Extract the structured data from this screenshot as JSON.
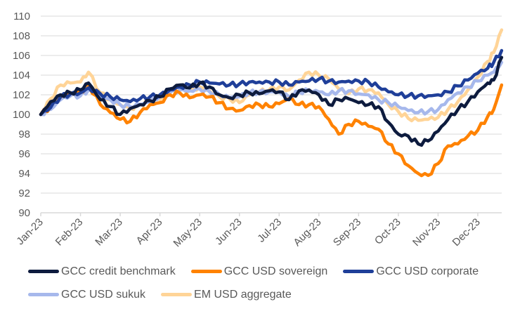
{
  "chart_data": {
    "type": "line",
    "title": "",
    "xlabel": "",
    "ylabel": "",
    "ylim": [
      90,
      110
    ],
    "yticks": [
      "90",
      "92",
      "94",
      "96",
      "98",
      "100",
      "102",
      "104",
      "106",
      "108",
      "110"
    ],
    "grid": true,
    "legend_position": "bottom",
    "x_tick_labels": [
      "Jan-23",
      "Feb-23",
      "Mar-23",
      "Apr-23",
      "May-23",
      "Jun-23",
      "Jul-23",
      "Aug-23",
      "Sep-23",
      "Oct-23",
      "Nov-23",
      "Dec-23"
    ],
    "x_month_positions": [
      0,
      0.25,
      0.5,
      0.75,
      1,
      1.2,
      1.5,
      1.75,
      2,
      2.25,
      2.5,
      2.75,
      3,
      3.25,
      3.5,
      3.75,
      4,
      4.25,
      4.5,
      4.75,
      5,
      5.25,
      5.5,
      5.75,
      6,
      6.25,
      6.5,
      6.75,
      7,
      7.25,
      7.5,
      7.75,
      8,
      8.25,
      8.5,
      8.75,
      9,
      9.25,
      9.5,
      9.75,
      10,
      10.25,
      10.5,
      10.75,
      11,
      11.25,
      11.4,
      11.6
    ],
    "series": [
      {
        "name": "GCC credit benchmark",
        "color": "#0d1b3e",
        "values": [
          100,
          101.3,
          102,
          102.2,
          102.5,
          103.2,
          101.5,
          100.8,
          100,
          100.6,
          101,
          101.4,
          101.8,
          102.6,
          103,
          102.7,
          103.2,
          102.8,
          102,
          101.7,
          102,
          102.2,
          102.1,
          102.4,
          102.3,
          101.5,
          102.4,
          102.5,
          102,
          101,
          101.5,
          101.6,
          101.2,
          101,
          100.8,
          99.2,
          98,
          97.8,
          97,
          97.3,
          98.3,
          99.5,
          100.5,
          101.3,
          102.3,
          103.2,
          103.5,
          105.8
        ]
      },
      {
        "name": "GCC USD sovereign",
        "color": "#ff8200",
        "values": [
          100,
          100.8,
          101.8,
          102.2,
          102.3,
          103,
          101,
          100.2,
          99.5,
          99.3,
          100.2,
          101,
          101.2,
          102,
          102.2,
          101.7,
          102,
          101.8,
          101.2,
          100.6,
          100.4,
          100.9,
          101,
          100.8,
          101.1,
          101.6,
          101,
          101,
          100.8,
          99.5,
          98,
          99,
          99.3,
          98.8,
          98.5,
          97,
          96,
          94.8,
          94,
          93.8,
          95,
          96.8,
          97,
          97.8,
          98.4,
          99.8,
          100.5,
          103
        ]
      },
      {
        "name": "GCC USD corporate",
        "color": "#1f3f99",
        "values": [
          100,
          100.7,
          101.8,
          102.1,
          102.2,
          102.7,
          102.1,
          101.8,
          101.5,
          101.3,
          101.6,
          101.8,
          102,
          102.5,
          102.8,
          103,
          103.3,
          103.2,
          103.1,
          103,
          103.1,
          103.3,
          103.3,
          103.3,
          103.3,
          103,
          103.3,
          103.4,
          103.6,
          103.4,
          103.3,
          103.4,
          103.4,
          103.3,
          102.8,
          102.3,
          102,
          101.9,
          101.9,
          101.9,
          102,
          102.3,
          102.9,
          103.5,
          104.2,
          104.7,
          105.3,
          106.5
        ]
      },
      {
        "name": "GCC USD sukuk",
        "color": "#a6b8ec",
        "values": [
          100,
          100.5,
          101.5,
          101.9,
          101.9,
          102.5,
          101.8,
          101.5,
          101,
          100.8,
          101,
          101.3,
          101.8,
          102.2,
          102.5,
          102.4,
          102.6,
          102.3,
          102,
          101.7,
          101.8,
          102.2,
          102.3,
          102.3,
          102.3,
          101.8,
          102.3,
          102.4,
          102.3,
          102,
          102.4,
          102.4,
          102.1,
          102,
          101.5,
          101.2,
          100.8,
          100.4,
          100.2,
          100.3,
          100.5,
          101.5,
          102.2,
          102.8,
          103.4,
          104,
          104.3,
          105.3
        ]
      },
      {
        "name": "EM USD aggregate",
        "color": "#ffd497",
        "values": [
          100,
          101.6,
          103,
          103.2,
          103.3,
          104.3,
          102.2,
          101.5,
          101,
          100.6,
          101,
          101.5,
          101.5,
          102.2,
          102.5,
          102.4,
          102.8,
          102.4,
          101.8,
          101.6,
          101.2,
          102,
          102.3,
          102.5,
          102.8,
          102.5,
          103.5,
          104.3,
          104,
          103.6,
          102.6,
          102.1,
          102.6,
          102.5,
          102.2,
          101,
          100.3,
          99.6,
          99.4,
          99.5,
          99.7,
          100.5,
          101.3,
          102.5,
          103.8,
          105.4,
          106.3,
          108.6
        ]
      }
    ]
  }
}
